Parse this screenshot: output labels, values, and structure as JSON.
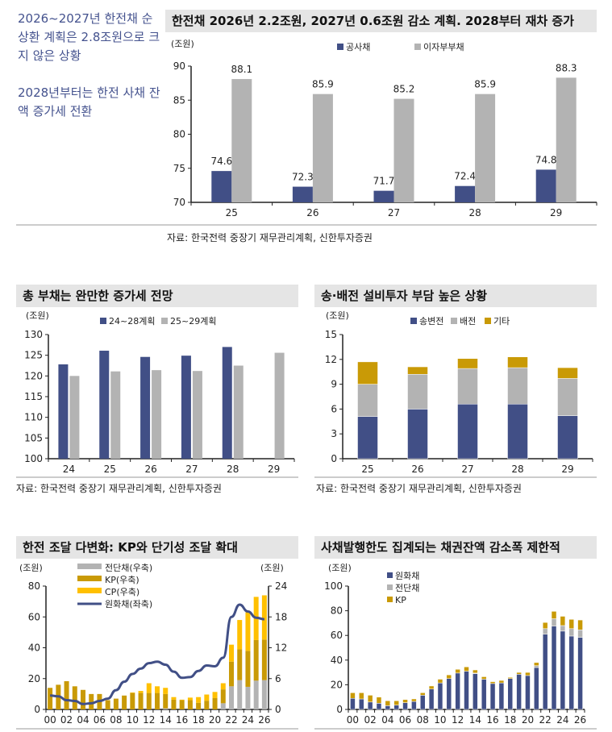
{
  "notes": {
    "p1": "2026~2027년 한전채 순상환 계획은 2.8조원으로 크지 않은 상황",
    "p2": "2028년부터는 한전 사채 잔액 증가세 전환"
  },
  "colors": {
    "navy": "#414f86",
    "gray": "#b3b3b3",
    "gold": "#c99a06",
    "yellow": "#ffc000",
    "title_bg": "#e5e5e5"
  },
  "chart_data": [
    {
      "type": "bar",
      "title": "한전채 2026년 2.2조원, 2027년 0.6조원 감소 계획. 2028부터 재차 증가",
      "unit": "(조원)",
      "categories": [
        "25",
        "26",
        "27",
        "28",
        "29"
      ],
      "series": [
        {
          "name": "공사채",
          "color": "#414f86",
          "values": [
            74.6,
            72.3,
            71.7,
            72.4,
            74.8
          ]
        },
        {
          "name": "이자부부채",
          "color": "#b3b3b3",
          "values": [
            88.1,
            85.9,
            85.2,
            85.9,
            88.3
          ]
        }
      ],
      "ylim": [
        70,
        90
      ],
      "yticks": [
        70,
        75,
        80,
        85,
        90
      ],
      "data_labels": true,
      "grid": false,
      "legend": "top",
      "source": "자료: 한국전력 중장기 재무관리계획, 신한투자증권"
    },
    {
      "type": "bar",
      "title": "총 부채는 완만한 증가세 전망",
      "unit": "(조원)",
      "categories": [
        "24",
        "25",
        "26",
        "27",
        "28",
        "29"
      ],
      "series": [
        {
          "name": "24~28계획",
          "color": "#414f86",
          "values": [
            122.8,
            126.1,
            124.6,
            124.9,
            127.0,
            null
          ]
        },
        {
          "name": "25~29계획",
          "color": "#b3b3b3",
          "values": [
            120.0,
            121.1,
            121.4,
            121.2,
            122.5,
            125.6
          ]
        }
      ],
      "ylim": [
        100,
        130
      ],
      "yticks": [
        100,
        105,
        110,
        115,
        120,
        125,
        130
      ],
      "grid": false,
      "legend": "top",
      "source": "자료: 한국전력 중장기 재무관리계획, 신한투자증권"
    },
    {
      "type": "stacked_bar",
      "title": "송·배전 설비투자 부담 높은 상황",
      "unit": "(조원)",
      "categories": [
        "25",
        "26",
        "27",
        "28",
        "29"
      ],
      "series": [
        {
          "name": "송변전",
          "color": "#414f86",
          "values": [
            5.1,
            6.0,
            6.6,
            6.6,
            5.2
          ]
        },
        {
          "name": "배전",
          "color": "#b3b3b3",
          "values": [
            3.9,
            4.2,
            4.3,
            4.4,
            4.5
          ]
        },
        {
          "name": "기타",
          "color": "#c99a06",
          "values": [
            2.7,
            0.9,
            1.2,
            1.3,
            1.3
          ]
        }
      ],
      "ylim": [
        0,
        15
      ],
      "yticks": [
        0,
        3,
        6,
        9,
        12,
        15
      ],
      "grid": false,
      "legend": "top",
      "source": "자료: 한국전력 중장기 재무관리계획, 신한투자증권"
    },
    {
      "type": "stacked_bar_line",
      "title": "한전 조달 다변화: KP와 단기성 조달 확대",
      "unit_left": "(조원)",
      "unit_right": "(조원)",
      "categories": [
        "00",
        "01",
        "02",
        "03",
        "04",
        "05",
        "06",
        "07",
        "08",
        "09",
        "10",
        "11",
        "12",
        "13",
        "14",
        "15",
        "16",
        "17",
        "18",
        "19",
        "20",
        "21",
        "22",
        "23",
        "24",
        "25",
        "26"
      ],
      "series": [
        {
          "name": "전단채(우축)",
          "color": "#b3b3b3",
          "axis": "right",
          "kind": "bar",
          "values": [
            0,
            0,
            0,
            0,
            0,
            0,
            0,
            0,
            0,
            0,
            0,
            0,
            0,
            0,
            0.2,
            0,
            0,
            0,
            0,
            0,
            0,
            1.2,
            4.5,
            5.7,
            4.4,
            5.6,
            5.7
          ]
        },
        {
          "name": "KP(우축)",
          "color": "#c99a06",
          "axis": "right",
          "kind": "bar",
          "values": [
            4.2,
            4.8,
            5.5,
            4.5,
            3.8,
            3.0,
            3.0,
            1.8,
            2.1,
            2.7,
            3.2,
            3.2,
            3.2,
            3.2,
            2.8,
            1.9,
            1.8,
            1.8,
            1.3,
            1.7,
            2.2,
            2.7,
            4.8,
            6.0,
            7.0,
            7.9,
            7.9
          ]
        },
        {
          "name": "CP(우축)",
          "color": "#ffc000",
          "axis": "right",
          "kind": "bar",
          "values": [
            0,
            0,
            0,
            0,
            0,
            0,
            0,
            0,
            0,
            0,
            0.1,
            0.4,
            1.9,
            1.3,
            1.2,
            0.5,
            0.1,
            0.5,
            1.1,
            1.2,
            1.2,
            1.2,
            3.3,
            5.7,
            7.5,
            8.4,
            8.6
          ]
        },
        {
          "name": "원화채(좌축)",
          "color": "#414f86",
          "axis": "left",
          "kind": "line",
          "values": [
            9,
            8.5,
            6,
            5.5,
            3.5,
            4,
            5.5,
            7,
            12.5,
            18,
            23,
            26.5,
            30,
            31,
            29,
            24.5,
            20.5,
            21,
            25,
            28.5,
            28,
            33.5,
            60,
            68,
            63.5,
            59.5,
            58.5
          ]
        }
      ],
      "ylim_left": [
        0,
        80
      ],
      "yticks_left": [
        0,
        20,
        40,
        60,
        80
      ],
      "ylim_right": [
        0,
        24
      ],
      "yticks_right": [
        0,
        6,
        12,
        18,
        24
      ],
      "grid": false,
      "legend": "top-left"
    },
    {
      "type": "stacked_bar",
      "title": "사채발행한도 집계되는 채권잔액 감소폭 제한적",
      "unit": "(조원)",
      "categories": [
        "00",
        "01",
        "02",
        "03",
        "04",
        "05",
        "06",
        "07",
        "08",
        "09",
        "10",
        "11",
        "12",
        "13",
        "14",
        "15",
        "16",
        "17",
        "18",
        "19",
        "20",
        "21",
        "22",
        "23",
        "24",
        "25",
        "26"
      ],
      "series": [
        {
          "name": "원화채",
          "color": "#414f86",
          "values": [
            9,
            8.5,
            6,
            5,
            3,
            3.5,
            5.5,
            6.5,
            11.5,
            16.5,
            21.5,
            25,
            29.5,
            31,
            29,
            24.5,
            21,
            21.5,
            25,
            28.5,
            27.5,
            34,
            61,
            67.5,
            63.5,
            59.5,
            58.5
          ]
        },
        {
          "name": "전단채",
          "color": "#b3b3b3",
          "values": [
            0,
            0,
            0,
            0,
            0,
            0,
            0,
            0,
            0,
            0,
            0,
            0,
            0,
            0,
            0.5,
            0,
            0,
            0,
            0,
            0,
            0,
            1.5,
            4.5,
            6,
            4.5,
            6,
            6
          ]
        },
        {
          "name": "KP",
          "color": "#c99a06",
          "values": [
            4.5,
            5,
            5.5,
            5,
            4,
            3.5,
            2.5,
            2,
            2,
            2.5,
            3,
            3,
            3,
            3.5,
            2.5,
            2,
            1.5,
            2,
            1,
            1.5,
            2.5,
            2.5,
            5,
            6,
            7.5,
            7.5,
            8
          ]
        }
      ],
      "ylim": [
        0,
        100
      ],
      "yticks": [
        0,
        20,
        40,
        60,
        80,
        100
      ],
      "grid": false,
      "legend": "top-left"
    }
  ]
}
